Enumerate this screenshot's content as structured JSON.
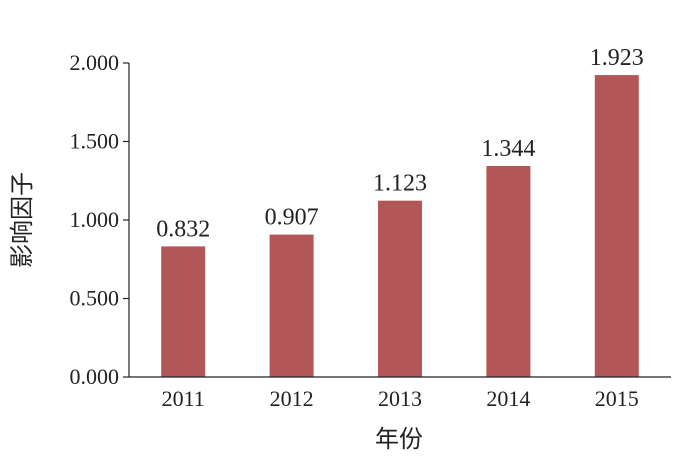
{
  "chart_data": {
    "type": "bar",
    "categories": [
      "2011",
      "2012",
      "2013",
      "2014",
      "2015"
    ],
    "values": [
      0.832,
      0.907,
      1.123,
      1.344,
      1.923
    ],
    "value_labels": [
      "0.832",
      "0.907",
      "1.123",
      "1.344",
      "1.923"
    ],
    "title": "",
    "xlabel": "年份",
    "ylabel": "影响因子",
    "ylim": [
      0,
      2.0
    ],
    "yticks": [
      0,
      0.5,
      1.0,
      1.5,
      2.0
    ],
    "ytick_labels": [
      "0.000",
      "0.500",
      "1.000",
      "1.500",
      "2.000"
    ],
    "grid": false,
    "legend": "none",
    "bar_color": "#b25658",
    "axis_color": "#222222"
  }
}
